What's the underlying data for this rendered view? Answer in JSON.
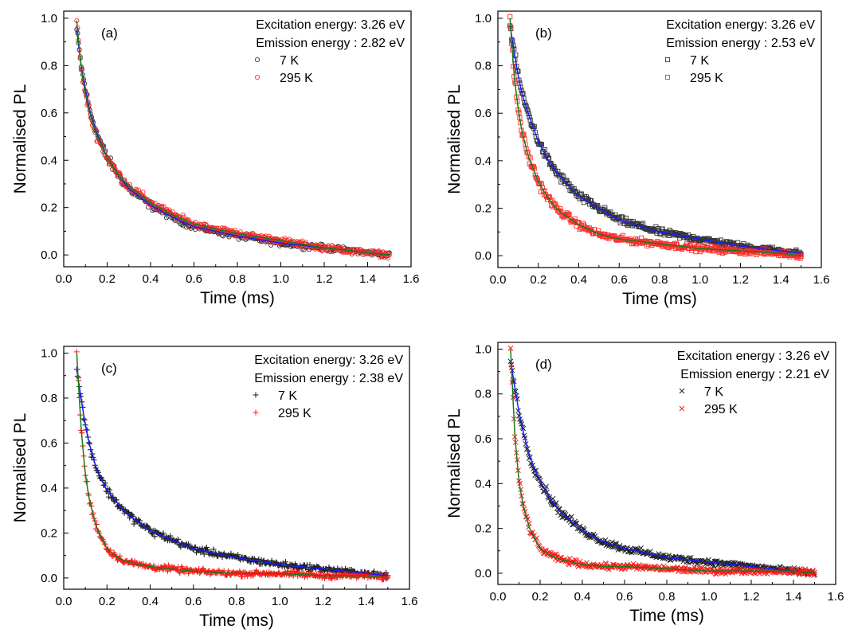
{
  "chart_data": [
    {
      "type": "scatter",
      "panel_label": "(a)",
      "xlabel": "Time (ms)",
      "ylabel": "Normalised PL",
      "xlim": [
        0.0,
        1.6
      ],
      "ylim": [
        -0.05,
        1.03
      ],
      "xticks": [
        "0.0",
        "0.2",
        "0.4",
        "0.6",
        "0.8",
        "1.0",
        "1.2",
        "1.4",
        "1.6"
      ],
      "yticks": [
        "0.0",
        "0.2",
        "0.4",
        "0.6",
        "0.8",
        "1.0"
      ],
      "annotations": [
        "Excitation energy: 3.26 eV",
        "Emission energy : 2.82 eV"
      ],
      "legend_position": "top-right",
      "series": [
        {
          "name": "7 K",
          "marker": "circle",
          "color": "#333333",
          "x": [
            0.06,
            0.08,
            0.1,
            0.12,
            0.15,
            0.2,
            0.25,
            0.3,
            0.4,
            0.5,
            0.6,
            0.8,
            1.0,
            1.2,
            1.4,
            1.5
          ],
          "y": [
            0.95,
            0.8,
            0.7,
            0.61,
            0.52,
            0.41,
            0.34,
            0.28,
            0.21,
            0.16,
            0.12,
            0.08,
            0.05,
            0.03,
            0.01,
            0.0
          ]
        },
        {
          "name": "295 K",
          "marker": "circle",
          "color": "#ff2a2a",
          "x": [
            0.06,
            0.08,
            0.1,
            0.12,
            0.15,
            0.2,
            0.25,
            0.3,
            0.4,
            0.5,
            0.6,
            0.8,
            1.0,
            1.2,
            1.4,
            1.5
          ],
          "y": [
            0.99,
            0.79,
            0.68,
            0.6,
            0.51,
            0.41,
            0.34,
            0.29,
            0.22,
            0.17,
            0.13,
            0.09,
            0.06,
            0.03,
            0.01,
            0.0
          ]
        }
      ],
      "fits": [
        {
          "color": "#1a1aff",
          "follows": "7 K"
        },
        {
          "color": "#1a7a1a",
          "follows": "295 K"
        }
      ]
    },
    {
      "type": "scatter",
      "panel_label": "(b)",
      "xlabel": "Time (ms)",
      "ylabel": "Normalised PL",
      "xlim": [
        0.0,
        1.6
      ],
      "ylim": [
        -0.05,
        1.03
      ],
      "xticks": [
        "0.0",
        "0.2",
        "0.4",
        "0.6",
        "0.8",
        "1.0",
        "1.2",
        "1.4",
        "1.6"
      ],
      "yticks": [
        "0.0",
        "0.2",
        "0.4",
        "0.6",
        "0.8",
        "1.0"
      ],
      "annotations": [
        "Excitation energy: 3.26 eV",
        "Emission energy : 2.53 eV"
      ],
      "legend_position": "top-right",
      "series": [
        {
          "name": "7 K",
          "marker": "square",
          "color": "#333333",
          "x": [
            0.06,
            0.08,
            0.1,
            0.12,
            0.15,
            0.2,
            0.25,
            0.3,
            0.4,
            0.5,
            0.6,
            0.8,
            1.0,
            1.2,
            1.4,
            1.5
          ],
          "y": [
            0.97,
            0.86,
            0.76,
            0.68,
            0.6,
            0.48,
            0.4,
            0.34,
            0.25,
            0.2,
            0.15,
            0.1,
            0.07,
            0.04,
            0.02,
            0.01
          ]
        },
        {
          "name": "295 K",
          "marker": "square",
          "color": "#ff2a2a",
          "x": [
            0.06,
            0.08,
            0.1,
            0.12,
            0.15,
            0.2,
            0.25,
            0.3,
            0.4,
            0.5,
            0.6,
            0.8,
            1.0,
            1.2,
            1.4,
            1.5
          ],
          "y": [
            1.0,
            0.76,
            0.62,
            0.52,
            0.42,
            0.31,
            0.24,
            0.19,
            0.13,
            0.09,
            0.07,
            0.05,
            0.03,
            0.02,
            0.01,
            0.0
          ]
        }
      ],
      "fits": [
        {
          "color": "#1a1aff",
          "follows": "7 K"
        },
        {
          "color": "#1a7a1a",
          "follows": "295 K"
        }
      ]
    },
    {
      "type": "scatter",
      "panel_label": "(c)",
      "xlabel": "Time (ms)",
      "ylabel": "Normalised PL",
      "xlim": [
        0.0,
        1.6
      ],
      "ylim": [
        -0.05,
        1.03
      ],
      "xticks": [
        "0.0",
        "0.2",
        "0.4",
        "0.6",
        "0.8",
        "1.0",
        "1.2",
        "1.4",
        "1.6"
      ],
      "yticks": [
        "0.0",
        "0.2",
        "0.4",
        "0.6",
        "0.8",
        "1.0"
      ],
      "annotations": [
        "Excitation energy: 3.26 eV",
        "Emission energy : 2.38 eV"
      ],
      "legend_position": "top-right",
      "series": [
        {
          "name": "7 K",
          "marker": "plus",
          "color": "#222222",
          "x": [
            0.06,
            0.08,
            0.1,
            0.12,
            0.15,
            0.2,
            0.25,
            0.3,
            0.4,
            0.5,
            0.6,
            0.8,
            1.0,
            1.2,
            1.4,
            1.5
          ],
          "y": [
            0.93,
            0.8,
            0.68,
            0.59,
            0.49,
            0.39,
            0.33,
            0.28,
            0.21,
            0.17,
            0.13,
            0.09,
            0.06,
            0.04,
            0.02,
            0.01
          ]
        },
        {
          "name": "295 K",
          "marker": "plus",
          "color": "#ff1a1a",
          "x": [
            0.06,
            0.08,
            0.1,
            0.12,
            0.15,
            0.2,
            0.25,
            0.3,
            0.4,
            0.5,
            0.6,
            0.8,
            1.0,
            1.2,
            1.4,
            1.5
          ],
          "y": [
            1.0,
            0.67,
            0.46,
            0.34,
            0.23,
            0.13,
            0.09,
            0.07,
            0.05,
            0.04,
            0.03,
            0.02,
            0.02,
            0.01,
            0.01,
            0.0
          ]
        }
      ],
      "fits": [
        {
          "color": "#1a1aff",
          "follows": "7 K"
        },
        {
          "color": "#1a7a1a",
          "follows": "295 K"
        }
      ]
    },
    {
      "type": "scatter",
      "panel_label": "(d)",
      "xlabel": "Time (ms)",
      "ylabel": "Normalised PL",
      "xlim": [
        0.0,
        1.6
      ],
      "ylim": [
        -0.05,
        1.03
      ],
      "xticks": [
        "0.0",
        "0.2",
        "0.4",
        "0.6",
        "0.8",
        "1.0",
        "1.2",
        "1.4",
        "1.6"
      ],
      "yticks": [
        "0.0",
        "0.2",
        "0.4",
        "0.6",
        "0.8",
        "1.0"
      ],
      "annotations": [
        "Excitation energy : 3.26 eV",
        "Emission energy :  2.21 eV"
      ],
      "legend_position": "top-right",
      "series": [
        {
          "name": "7 K",
          "marker": "cross",
          "color": "#222222",
          "x": [
            0.06,
            0.08,
            0.1,
            0.12,
            0.15,
            0.2,
            0.25,
            0.3,
            0.4,
            0.5,
            0.6,
            0.8,
            1.0,
            1.2,
            1.4,
            1.5
          ],
          "y": [
            0.95,
            0.83,
            0.72,
            0.63,
            0.52,
            0.41,
            0.33,
            0.27,
            0.19,
            0.14,
            0.11,
            0.07,
            0.05,
            0.03,
            0.01,
            0.0
          ]
        },
        {
          "name": "295 K",
          "marker": "cross",
          "color": "#ff1a1a",
          "x": [
            0.06,
            0.08,
            0.1,
            0.12,
            0.15,
            0.2,
            0.25,
            0.3,
            0.4,
            0.5,
            0.6,
            0.8,
            1.0,
            1.2,
            1.4,
            1.5
          ],
          "y": [
            1.0,
            0.62,
            0.41,
            0.3,
            0.2,
            0.11,
            0.08,
            0.06,
            0.04,
            0.03,
            0.03,
            0.02,
            0.01,
            0.01,
            0.01,
            0.0
          ]
        }
      ],
      "fits": [
        {
          "color": "#1a1aff",
          "follows": "7 K"
        },
        {
          "color": "#1a7a1a",
          "follows": "295 K"
        }
      ]
    }
  ]
}
